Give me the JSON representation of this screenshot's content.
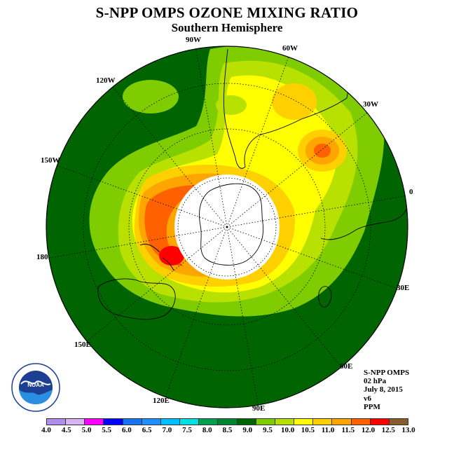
{
  "title": "S-NPP OMPS OZONE MIXING RATIO",
  "subtitle": "Southern Hemisphere",
  "longitude_labels": {
    "lon_90w": "90W",
    "lon_60w": "60W",
    "lon_30w": "30W",
    "lon_0": "0",
    "lon_30e": "30E",
    "lon_60e": "60E",
    "lon_90e": "90E",
    "lon_120e": "120E",
    "lon_150e": "150E",
    "lon_180": "180",
    "lon_150w": "150W",
    "lon_120w": "120W"
  },
  "info": {
    "instrument": "S-NPP OMPS",
    "level": "02 hPa",
    "date": "July 8, 2015",
    "version": "v6",
    "units": "PPM"
  },
  "logo_text": "NOAA",
  "colorbar": {
    "ticks": [
      "4.0",
      "4.5",
      "5.0",
      "5.5",
      "6.0",
      "6.5",
      "7.0",
      "7.5",
      "8.0",
      "8.5",
      "9.0",
      "9.5",
      "10.0",
      "10.5",
      "11.0",
      "11.5",
      "12.0",
      "12.5",
      "13.0"
    ],
    "colors": [
      "#b38ee8",
      "#d7b4f2",
      "#ff00ff",
      "#0000ff",
      "#1874ee",
      "#1e90ff",
      "#00bfff",
      "#00e0e0",
      "#00a050",
      "#008530",
      "#006400",
      "#7fcc00",
      "#b8e000",
      "#ffff00",
      "#ffd000",
      "#ffa500",
      "#ff6000",
      "#ff0000",
      "#8b5a2b"
    ]
  },
  "map_colors": {
    "background_green": "#006400",
    "polar_night": "#ffffff"
  }
}
